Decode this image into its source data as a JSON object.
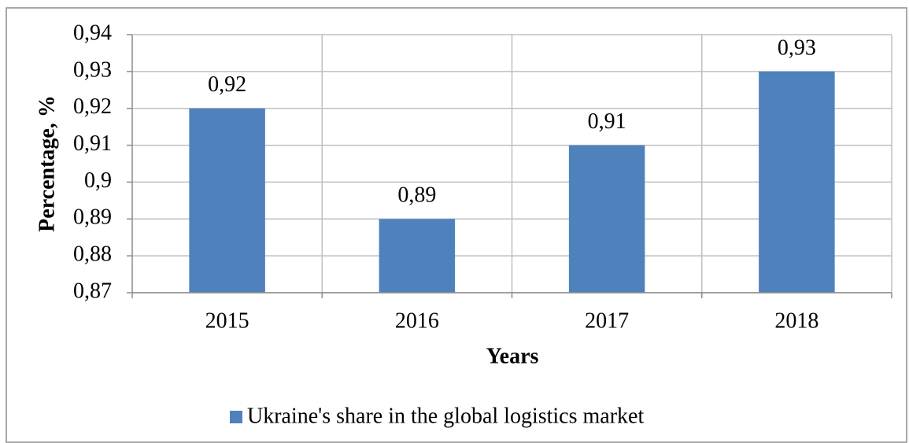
{
  "chart_data": {
    "type": "bar",
    "categories": [
      "2015",
      "2016",
      "2017",
      "2018"
    ],
    "values": [
      0.92,
      0.89,
      0.91,
      0.93
    ],
    "value_labels": [
      "0,92",
      "0,89",
      "0,91",
      "0,93"
    ],
    "color": "#4f81bd",
    "y_label": "Percentage, %",
    "x_label": "Years",
    "series_name": "Ukraine's share in the global logistics market",
    "ylim": [
      0.87,
      0.94
    ],
    "yticks": [
      {
        "value": 0.87,
        "label": "0,87"
      },
      {
        "value": 0.88,
        "label": "0,88"
      },
      {
        "value": 0.89,
        "label": "0,89"
      },
      {
        "value": 0.9,
        "label": "0,9"
      },
      {
        "value": 0.91,
        "label": "0,91"
      },
      {
        "value": 0.92,
        "label": "0,92"
      },
      {
        "value": 0.93,
        "label": "0,93"
      },
      {
        "value": 0.94,
        "label": "0,94"
      }
    ],
    "grid": true,
    "legend": "bottom"
  }
}
